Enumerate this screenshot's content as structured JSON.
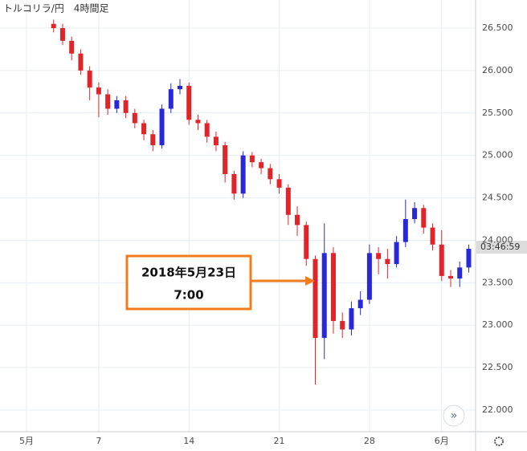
{
  "chart_data": {
    "type": "candlestick",
    "title": "トルコリラ/円　4時間足",
    "x": [
      1.5,
      2,
      2.5,
      3,
      3.5,
      4,
      4.5,
      5,
      5.5,
      6,
      6.5,
      7,
      7.5,
      8,
      8.5,
      9,
      9.5,
      10,
      10.5,
      11,
      11.5,
      12,
      12.5,
      13,
      13.5,
      14,
      14.5,
      15,
      15.5,
      16,
      16.5,
      17,
      17.5,
      18,
      18.5,
      19,
      19.5,
      20,
      20.5,
      21,
      21.5,
      22,
      22.5,
      23,
      23.5,
      24,
      24.5
    ],
    "open": [
      26.55,
      26.5,
      26.35,
      26.2,
      26.0,
      25.8,
      25.72,
      25.55,
      25.65,
      25.5,
      25.38,
      25.25,
      25.12,
      25.55,
      25.78,
      25.82,
      25.42,
      25.38,
      25.22,
      25.12,
      24.78,
      24.55,
      25.0,
      24.92,
      24.85,
      24.72,
      24.62,
      24.3,
      24.18,
      23.78,
      22.85,
      23.85,
      23.05,
      22.95,
      23.2,
      23.3,
      23.85,
      23.78,
      23.72,
      23.98,
      24.25,
      24.38,
      24.15,
      23.95,
      23.58,
      23.55,
      23.68
    ],
    "high": [
      26.6,
      26.55,
      26.4,
      26.25,
      26.05,
      25.86,
      25.78,
      25.7,
      25.7,
      25.55,
      25.42,
      25.3,
      25.6,
      25.85,
      25.9,
      25.86,
      25.48,
      25.42,
      25.28,
      25.16,
      24.82,
      25.05,
      25.04,
      24.96,
      24.9,
      24.78,
      24.66,
      24.4,
      24.22,
      23.82,
      24.2,
      23.92,
      23.15,
      23.28,
      23.4,
      23.95,
      23.92,
      23.9,
      24.05,
      24.48,
      24.45,
      24.42,
      24.2,
      24.12,
      23.65,
      23.75,
      23.95
    ],
    "low": [
      26.45,
      26.3,
      26.12,
      25.95,
      25.65,
      25.45,
      25.48,
      25.5,
      25.44,
      25.32,
      25.18,
      25.05,
      25.08,
      25.5,
      25.72,
      25.36,
      25.3,
      25.15,
      25.05,
      24.68,
      24.48,
      24.5,
      24.86,
      24.78,
      24.66,
      24.55,
      24.18,
      24.05,
      23.7,
      22.3,
      22.6,
      22.9,
      22.85,
      22.88,
      23.12,
      23.25,
      23.6,
      23.55,
      23.68,
      23.92,
      24.2,
      24.08,
      23.88,
      23.52,
      23.45,
      23.45,
      23.62
    ],
    "close": [
      26.5,
      26.35,
      26.2,
      26.0,
      25.8,
      25.72,
      25.55,
      25.65,
      25.5,
      25.38,
      25.25,
      25.12,
      25.55,
      25.78,
      25.82,
      25.42,
      25.38,
      25.22,
      25.12,
      24.78,
      24.55,
      25.0,
      24.92,
      24.85,
      24.72,
      24.62,
      24.3,
      24.18,
      23.78,
      22.85,
      23.85,
      23.05,
      22.95,
      23.2,
      23.3,
      23.85,
      23.78,
      23.72,
      23.98,
      24.25,
      24.38,
      24.15,
      23.95,
      23.58,
      23.55,
      23.68,
      23.9
    ],
    "up_color": "#2828d8",
    "down_color": "#e0242a",
    "xlim": [
      -1.47,
      24.88
    ],
    "xticks": [
      {
        "value": 0,
        "label": "5月"
      },
      {
        "value": 4,
        "label": "7"
      },
      {
        "value": 9,
        "label": "14"
      },
      {
        "value": 14,
        "label": "21"
      },
      {
        "value": 19,
        "label": "28"
      },
      {
        "value": 23,
        "label": "6月"
      }
    ],
    "ylim": [
      21.745,
      26.831
    ],
    "yticks": [
      {
        "value": 22,
        "label": "22.000"
      },
      {
        "value": 22.5,
        "label": "22.500"
      },
      {
        "value": 23,
        "label": "23.000"
      },
      {
        "value": 23.5,
        "label": "23.500"
      },
      {
        "value": 24,
        "label": "24.000"
      },
      {
        "value": 24.5,
        "label": "24.500"
      },
      {
        "value": 25,
        "label": "25.000"
      },
      {
        "value": 25.5,
        "label": "25.500"
      },
      {
        "value": 26,
        "label": "26.000"
      },
      {
        "value": 26.5,
        "label": "26.500"
      }
    ],
    "grid": true,
    "countdown": "03:46:59",
    "annotation": {
      "date": "2018年5月23日",
      "time": "7:00"
    }
  }
}
